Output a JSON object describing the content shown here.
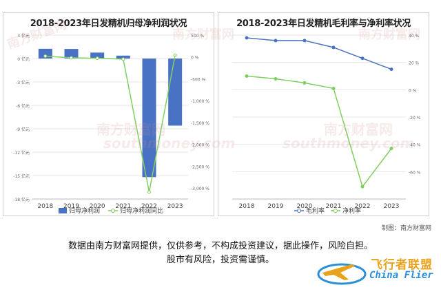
{
  "watermark": {
    "cn": "南方财富网",
    "en": "southmoney.com"
  },
  "chart_data": [
    {
      "type": "bar+line",
      "title": "2018-2023年日发精机归母净利润状况",
      "categories": [
        "2018",
        "2019",
        "2020",
        "2021",
        "2022",
        "2023"
      ],
      "series": [
        {
          "name": "归母净利润",
          "type": "bar",
          "axis": "left",
          "color": "#4a72c4",
          "values": [
            1.25,
            1.23,
            0.76,
            0.37,
            -15.2,
            -8.6
          ]
        },
        {
          "name": "归母净利润同比",
          "type": "line",
          "axis": "right",
          "color": "#7fcf5f",
          "values": [
            20,
            -20,
            -30,
            -50,
            -3090,
            40
          ]
        }
      ],
      "y_left": {
        "min": -18,
        "max": 3,
        "ticks": [
          3,
          0,
          -3,
          -6,
          -9,
          -12,
          -15,
          -18
        ],
        "tick_labels": [
          "3 亿元",
          "0 亿元",
          "-3 亿元",
          "-6 亿元",
          "-9 亿元",
          "-12 亿元",
          "-15 亿元",
          "-18 亿元"
        ]
      },
      "y_right": {
        "min": -3250,
        "max": 500,
        "ticks": [
          500,
          0,
          -500,
          -1000,
          -1500,
          -2000,
          -2500,
          -3000
        ],
        "tick_labels": [
          "500 %",
          "0 %",
          "-500 %",
          "-1,000 %",
          "-1,500 %",
          "-2,000 %",
          "-2,500 %",
          "-3,000 %"
        ]
      },
      "legend_position": "bottom"
    },
    {
      "type": "line",
      "title": "2018-2023年日发精机毛利率与净利率状况",
      "categories": [
        "2018",
        "2019",
        "2020",
        "2021",
        "2022",
        "2023"
      ],
      "series": [
        {
          "name": "毛利率",
          "color": "#4a72c4",
          "values": [
            38,
            36,
            36,
            31,
            23,
            15
          ]
        },
        {
          "name": "净利率",
          "color": "#7fcf5f",
          "values": [
            10,
            8,
            5,
            1,
            -71,
            -43
          ]
        }
      ],
      "y_right": {
        "min": -80,
        "max": 40,
        "ticks": [
          40,
          20,
          0,
          -20,
          -40,
          -60
        ],
        "tick_labels": [
          "40 %",
          "20 %",
          "0 %",
          "-20 %",
          "-40 %",
          "-60 %"
        ]
      },
      "legend_position": "bottom"
    }
  ],
  "caption": "制图：南方财富网",
  "disclaimer_line1": "数据由南方财富网提供，仅供参考，不构成投资建议，据此操作，风险自担。",
  "disclaimer_line2": "股市有风险，投资需谨慎。",
  "logo": {
    "cn": "飞行者联盟",
    "en": "China Flier",
    "colors": [
      "#e8a21b",
      "#2a8fd6"
    ]
  }
}
